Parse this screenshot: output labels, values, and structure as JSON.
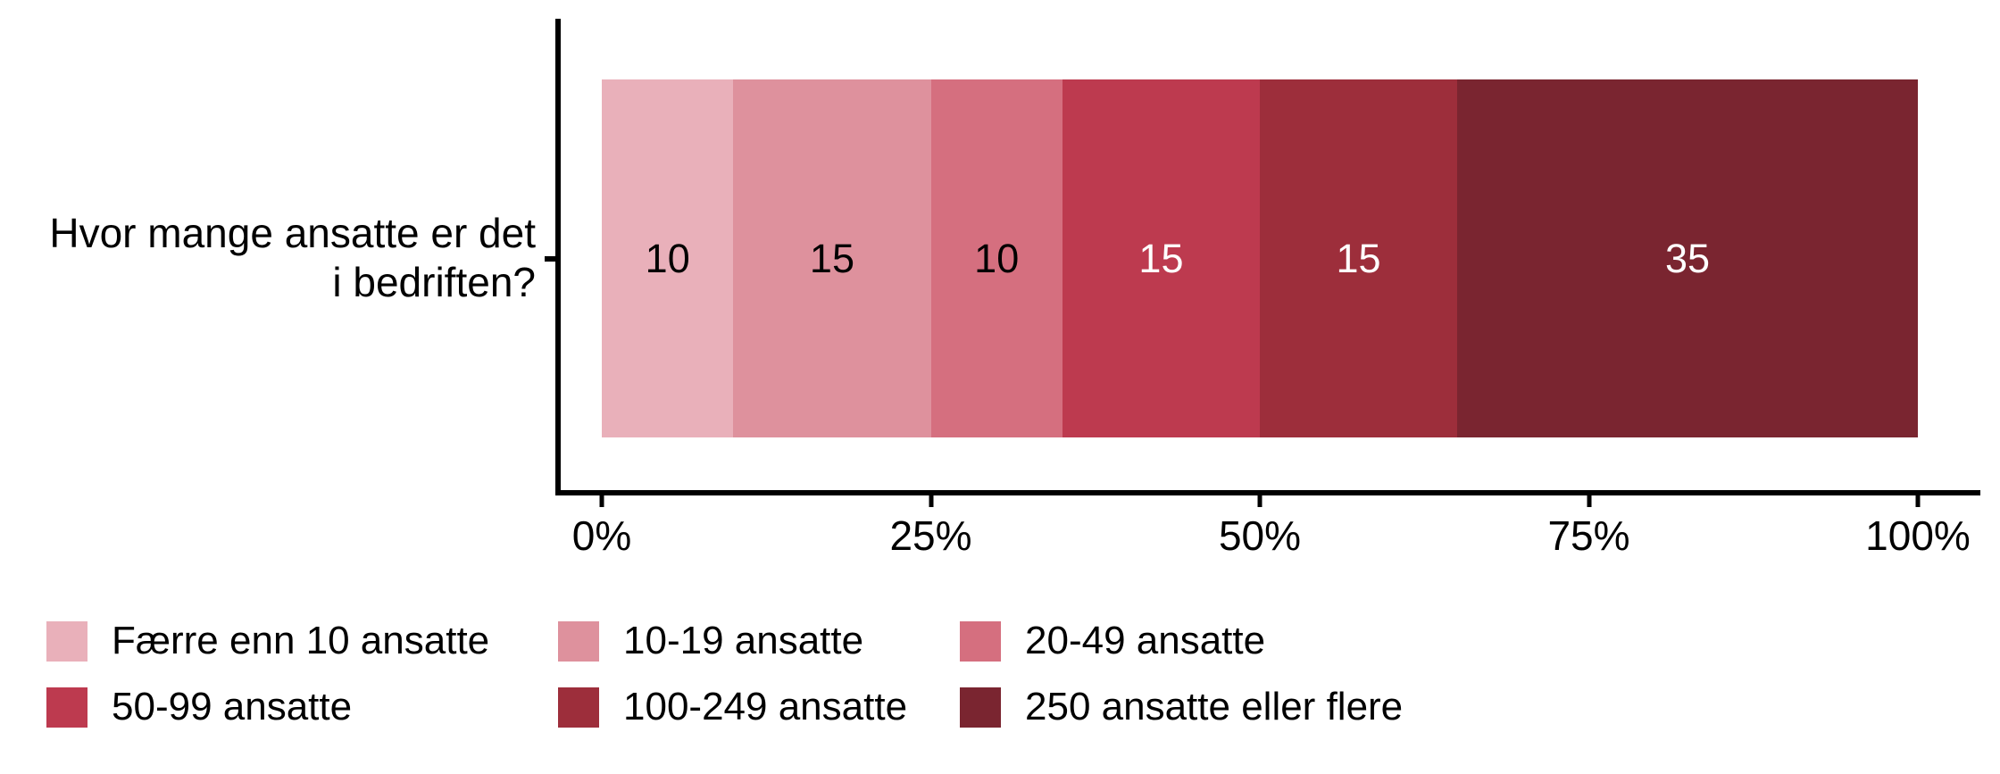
{
  "chart_data": {
    "type": "bar",
    "variant": "horizontal-stacked-percent",
    "title": "",
    "question": "Hvor mange ansatte er det i bedriften?",
    "question_lines": [
      "Hvor mange ansatte er det",
      "i bedriften?"
    ],
    "categories": [
      "Færre enn 10 ansatte",
      "10-19 ansatte",
      "20-49 ansatte",
      "50-99 ansatte",
      "100-249 ansatte",
      "250 ansatte eller flere"
    ],
    "values": [
      10,
      15,
      10,
      15,
      15,
      35
    ],
    "unit": "%",
    "colors": [
      "#E9B0BA",
      "#DE919D",
      "#D56F7F",
      "#BD3A4F",
      "#9D2E3B",
      "#7A2530"
    ],
    "value_label_colors": [
      "#000000",
      "#000000",
      "#000000",
      "#FFFFFF",
      "#FFFFFF",
      "#FFFFFF"
    ],
    "x_ticks": [
      {
        "label": "0%",
        "pct": 0
      },
      {
        "label": "25%",
        "pct": 25
      },
      {
        "label": "50%",
        "pct": 50
      },
      {
        "label": "75%",
        "pct": 75
      },
      {
        "label": "100%",
        "pct": 100
      }
    ],
    "xlim": [
      0,
      100
    ],
    "grid": "off",
    "axis_color": "#000000",
    "background": "#FFFFFF",
    "legend_position": "bottom",
    "legend_rows": 2
  }
}
